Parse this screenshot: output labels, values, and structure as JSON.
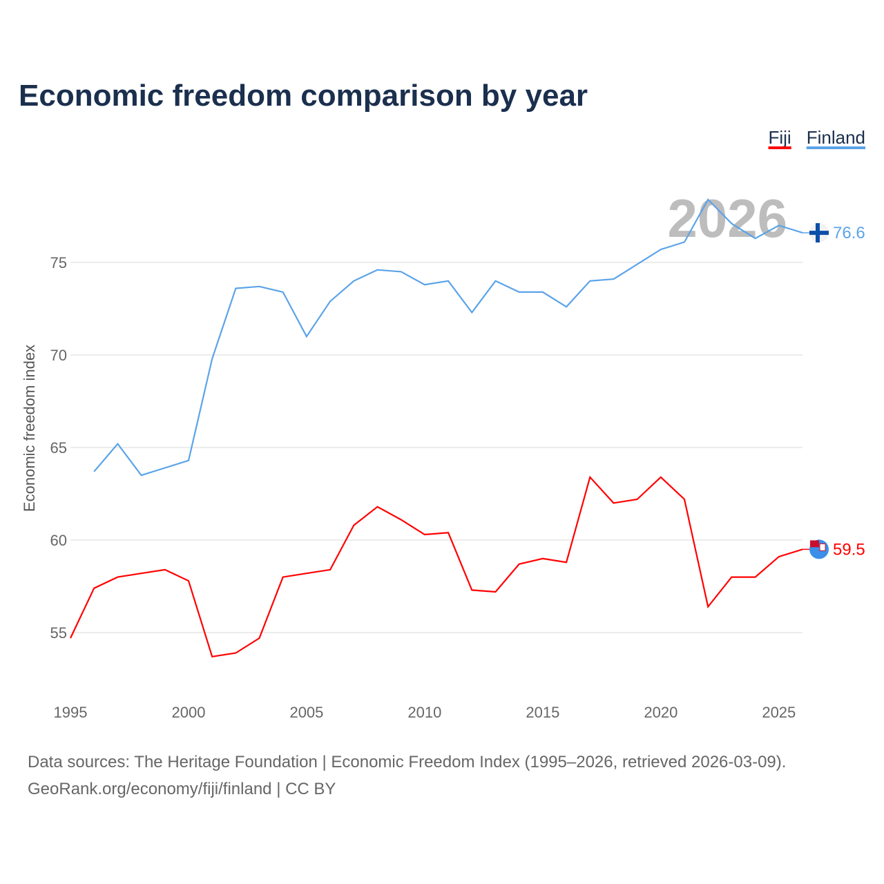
{
  "chart_data": {
    "type": "line",
    "title": "Economic freedom comparison by year",
    "xlabel": "",
    "ylabel": "Economic freedom index",
    "xlim": [
      1995,
      2026
    ],
    "ylim": [
      51.5,
      79
    ],
    "x_ticks": [
      1995,
      2000,
      2005,
      2010,
      2015,
      2020,
      2025
    ],
    "y_ticks": [
      55,
      60,
      65,
      70,
      75
    ],
    "grid": true,
    "legend_placement": "top-right",
    "current_year_label": "2026",
    "series": [
      {
        "name": "Fiji",
        "color": "#ff0000",
        "x": [
          1995,
          1996,
          1997,
          1998,
          1999,
          2000,
          2001,
          2002,
          2003,
          2004,
          2005,
          2006,
          2007,
          2008,
          2009,
          2010,
          2011,
          2012,
          2013,
          2014,
          2015,
          2016,
          2017,
          2018,
          2019,
          2020,
          2021,
          2022,
          2023,
          2024,
          2025,
          2026
        ],
        "values": [
          54.7,
          57.4,
          58.0,
          58.2,
          58.4,
          57.8,
          53.7,
          53.9,
          54.7,
          58.0,
          58.2,
          58.4,
          60.8,
          61.8,
          61.1,
          60.3,
          60.4,
          57.3,
          57.2,
          58.7,
          59.0,
          58.8,
          63.4,
          62.0,
          62.2,
          63.4,
          62.2,
          56.4,
          58.0,
          58.0,
          59.1,
          59.5
        ],
        "end_label": "59.5"
      },
      {
        "name": "Finland",
        "color": "#5ba3e8",
        "x": [
          1996,
          1997,
          1998,
          1999,
          2000,
          2001,
          2002,
          2003,
          2004,
          2005,
          2006,
          2007,
          2008,
          2009,
          2010,
          2011,
          2012,
          2013,
          2014,
          2015,
          2016,
          2017,
          2018,
          2019,
          2020,
          2021,
          2022,
          2023,
          2024,
          2025,
          2026
        ],
        "values": [
          63.7,
          65.2,
          63.5,
          63.9,
          64.3,
          69.8,
          73.6,
          73.7,
          73.4,
          71.0,
          72.9,
          74.0,
          74.6,
          74.5,
          73.8,
          74.0,
          72.3,
          74.0,
          73.4,
          73.4,
          72.6,
          74.0,
          74.1,
          74.9,
          75.7,
          76.1,
          78.4,
          77.1,
          76.3,
          77.0,
          76.6
        ],
        "end_label": "76.6"
      }
    ]
  },
  "footer": {
    "line1": "Data sources: The Heritage Foundation | Economic Freedom Index (1995–2026, retrieved 2026-03-09).",
    "line2": "GeoRank.org/economy/fiji/finland | CC BY"
  }
}
